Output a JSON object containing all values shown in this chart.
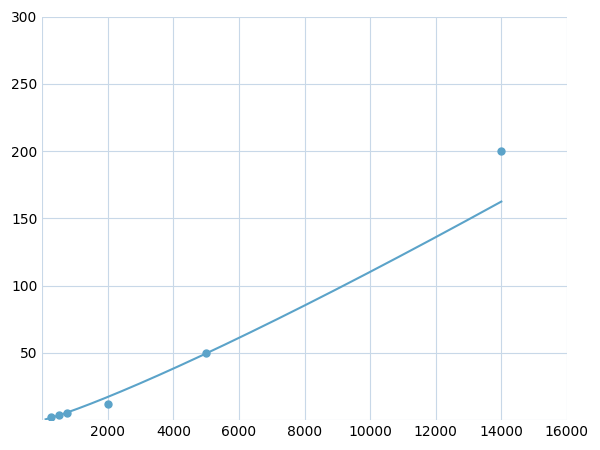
{
  "x": [
    250,
    500,
    750,
    2000,
    5000,
    14000
  ],
  "y": [
    2,
    3.5,
    5,
    12,
    50,
    200
  ],
  "line_color": "#5ba3c9",
  "marker_color": "#5ba3c9",
  "marker_size": 5,
  "line_width": 1.5,
  "xlim": [
    0,
    16000
  ],
  "ylim": [
    0,
    300
  ],
  "xticks": [
    0,
    2000,
    4000,
    6000,
    8000,
    10000,
    12000,
    14000,
    16000
  ],
  "yticks": [
    0,
    50,
    100,
    150,
    200,
    250,
    300
  ],
  "grid_color": "#c8d8e8",
  "background_color": "#ffffff",
  "tick_fontsize": 10
}
